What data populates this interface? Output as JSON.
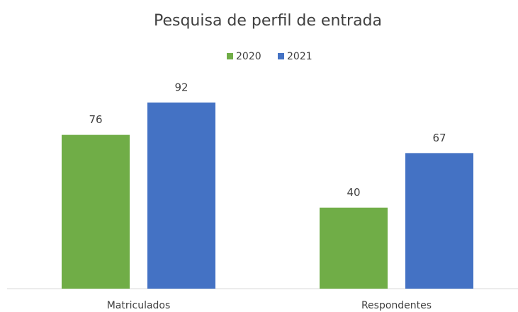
{
  "chart_data": {
    "type": "bar",
    "title": "Pesquisa de perfil de entrada",
    "categories": [
      "Matriculados",
      "Respondentes"
    ],
    "series": [
      {
        "name": "2020",
        "color": "#70ad47",
        "values": [
          76,
          40
        ]
      },
      {
        "name": "2021",
        "color": "#4472c4",
        "values": [
          92,
          67
        ]
      }
    ],
    "ylim": [
      0,
      100
    ],
    "legend": "top"
  }
}
